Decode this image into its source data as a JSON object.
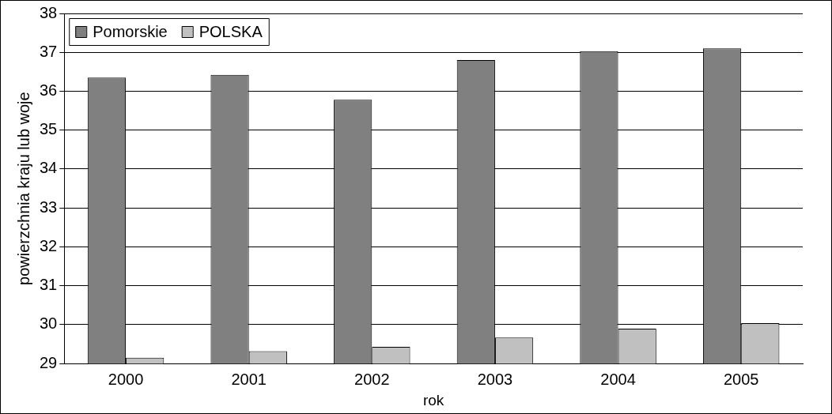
{
  "chart_data": {
    "type": "bar",
    "xlabel": "rok",
    "ylabel": "powierzchnia kraju lub woje",
    "categories": [
      "2000",
      "2001",
      "2002",
      "2003",
      "2004",
      "2005"
    ],
    "series": [
      {
        "name": "Pomorskie",
        "color": "#808080",
        "values": [
          36.35,
          36.42,
          35.78,
          36.8,
          37.03,
          37.1
        ]
      },
      {
        "name": "POLSKA",
        "color": "#c0c0c0",
        "values": [
          29.15,
          29.32,
          29.43,
          29.67,
          29.9,
          30.04
        ]
      }
    ],
    "ylim": [
      29,
      38
    ],
    "yticks": [
      29,
      30,
      31,
      32,
      33,
      34,
      35,
      36,
      37,
      38
    ],
    "grid": "y",
    "legend": "top left"
  }
}
